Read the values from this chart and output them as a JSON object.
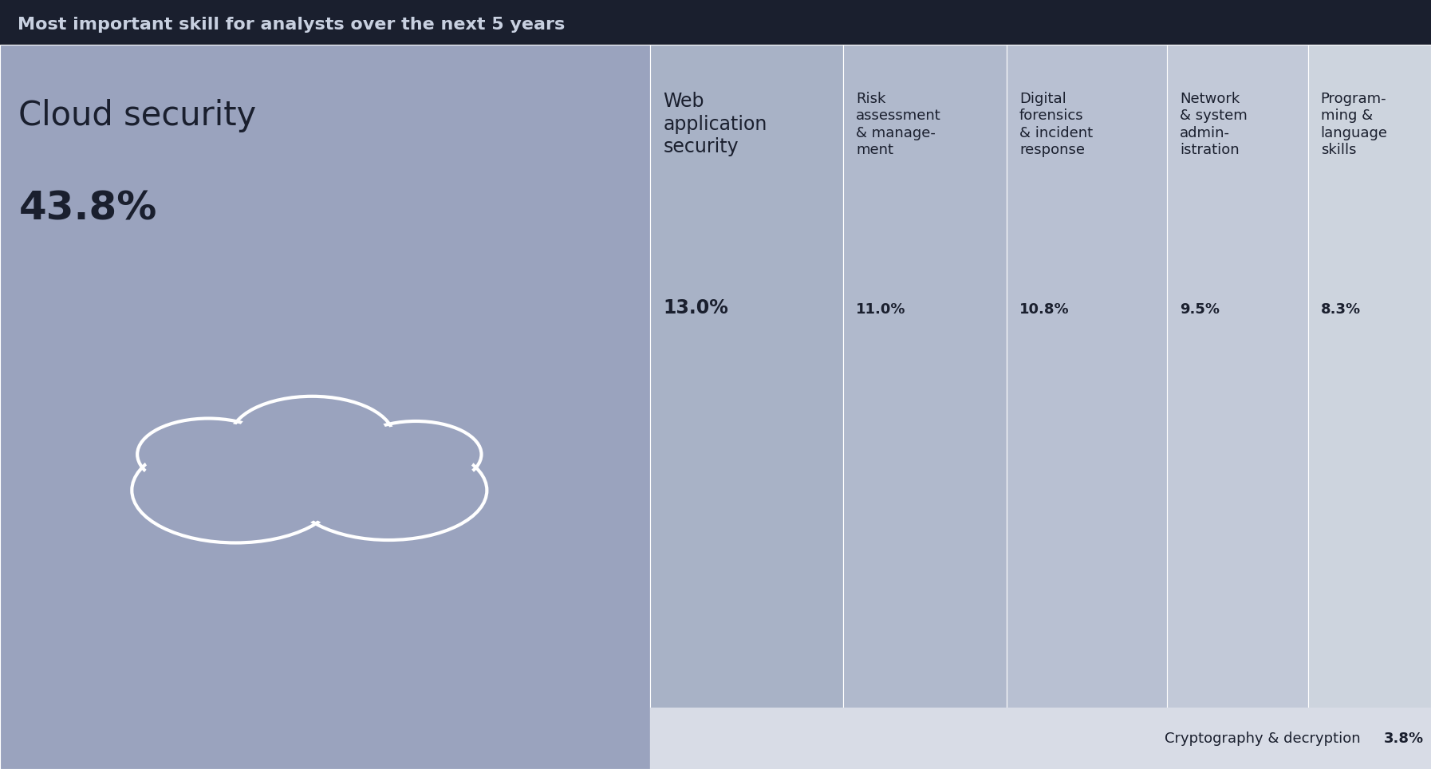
{
  "title": "Most important skill for analysts over the next 5 years",
  "title_bg": "#1a1f2e",
  "title_color": "#c8d0e0",
  "bars": [
    {
      "label": "Cloud security",
      "value": 43.8,
      "pct": "43.8%",
      "color": "#9aa3be"
    },
    {
      "label": "Web\napplication\nsecurity",
      "value": 13.0,
      "pct": "13.0%",
      "color": "#a8b2c6"
    },
    {
      "label": "Risk\nassessment\n& manage-\nment",
      "value": 11.0,
      "pct": "11.0%",
      "color": "#b0b9cc"
    },
    {
      "label": "Digital\nforensics\n& incident\nresponse",
      "value": 10.8,
      "pct": "10.8%",
      "color": "#b8c0d2"
    },
    {
      "label": "Network\n& system\nadmin-\nistration",
      "value": 9.5,
      "pct": "9.5%",
      "color": "#c2c9d8"
    },
    {
      "label": "Program-\nming &\nlanguage\nskills",
      "value": 8.3,
      "pct": "8.3%",
      "color": "#cdd4de"
    }
  ],
  "bottom_label": "Cryptography & decryption",
  "bottom_pct": "3.8%",
  "bottom_color": "#d8dce6",
  "text_color": "#1a1f2e",
  "cloud_text": "Cloud security",
  "cloud_pct": "43.8%"
}
